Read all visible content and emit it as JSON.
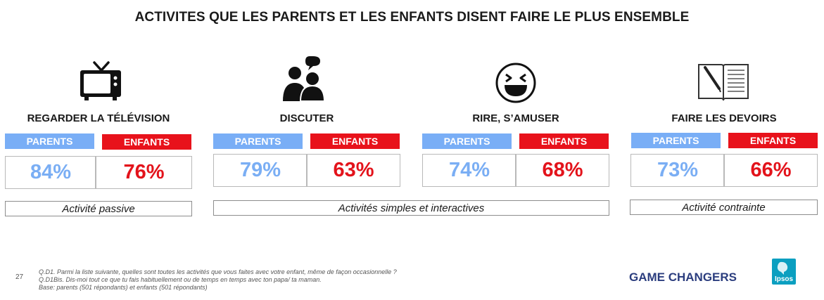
{
  "title": "ACTIVITES QUE LES PARENTS ET LES ENFANTS DISENT FAIRE LE PLUS ENSEMBLE",
  "tags": {
    "parents": "PARENTS",
    "enfants": "ENFANTS"
  },
  "activities": [
    {
      "label": "REGARDER LA TÉLÉVISION",
      "icon": "tv-icon",
      "parents": "84%",
      "enfants": "76%"
    },
    {
      "label": "DISCUTER",
      "icon": "people-talking-icon",
      "parents": "79%",
      "enfants": "63%"
    },
    {
      "label": "RIRE, S’AMUSER",
      "icon": "laughing-face-icon",
      "parents": "74%",
      "enfants": "68%"
    },
    {
      "label": "FAIRE LES DEVOIRS",
      "icon": "notebook-pen-icon",
      "parents": "73%",
      "enfants": "66%"
    }
  ],
  "notes": {
    "passive": "Activité passive",
    "interactive": "Activités simples et interactives",
    "contrainte": "Activité contrainte"
  },
  "footer": {
    "page": "27",
    "lines": [
      "Q.D1. Parmi la liste suivante, quelles sont toutes les activités que vous faites avec votre enfant, même de façon occasionnelle ?",
      "Q.D1Bis. Dis-moi tout ce que tu fais habituellement ou de temps en temps avec ton papa/ ta maman.",
      "Base: parents (501 répondants) et enfants (501 répondants)"
    ],
    "brand": "GAME CHANGERS",
    "logo": "Ipsos"
  },
  "colors": {
    "parents": "#7aaef4",
    "enfants": "#e3131b",
    "brand": "#2b3d7e",
    "logo": "#0b9fc0"
  }
}
